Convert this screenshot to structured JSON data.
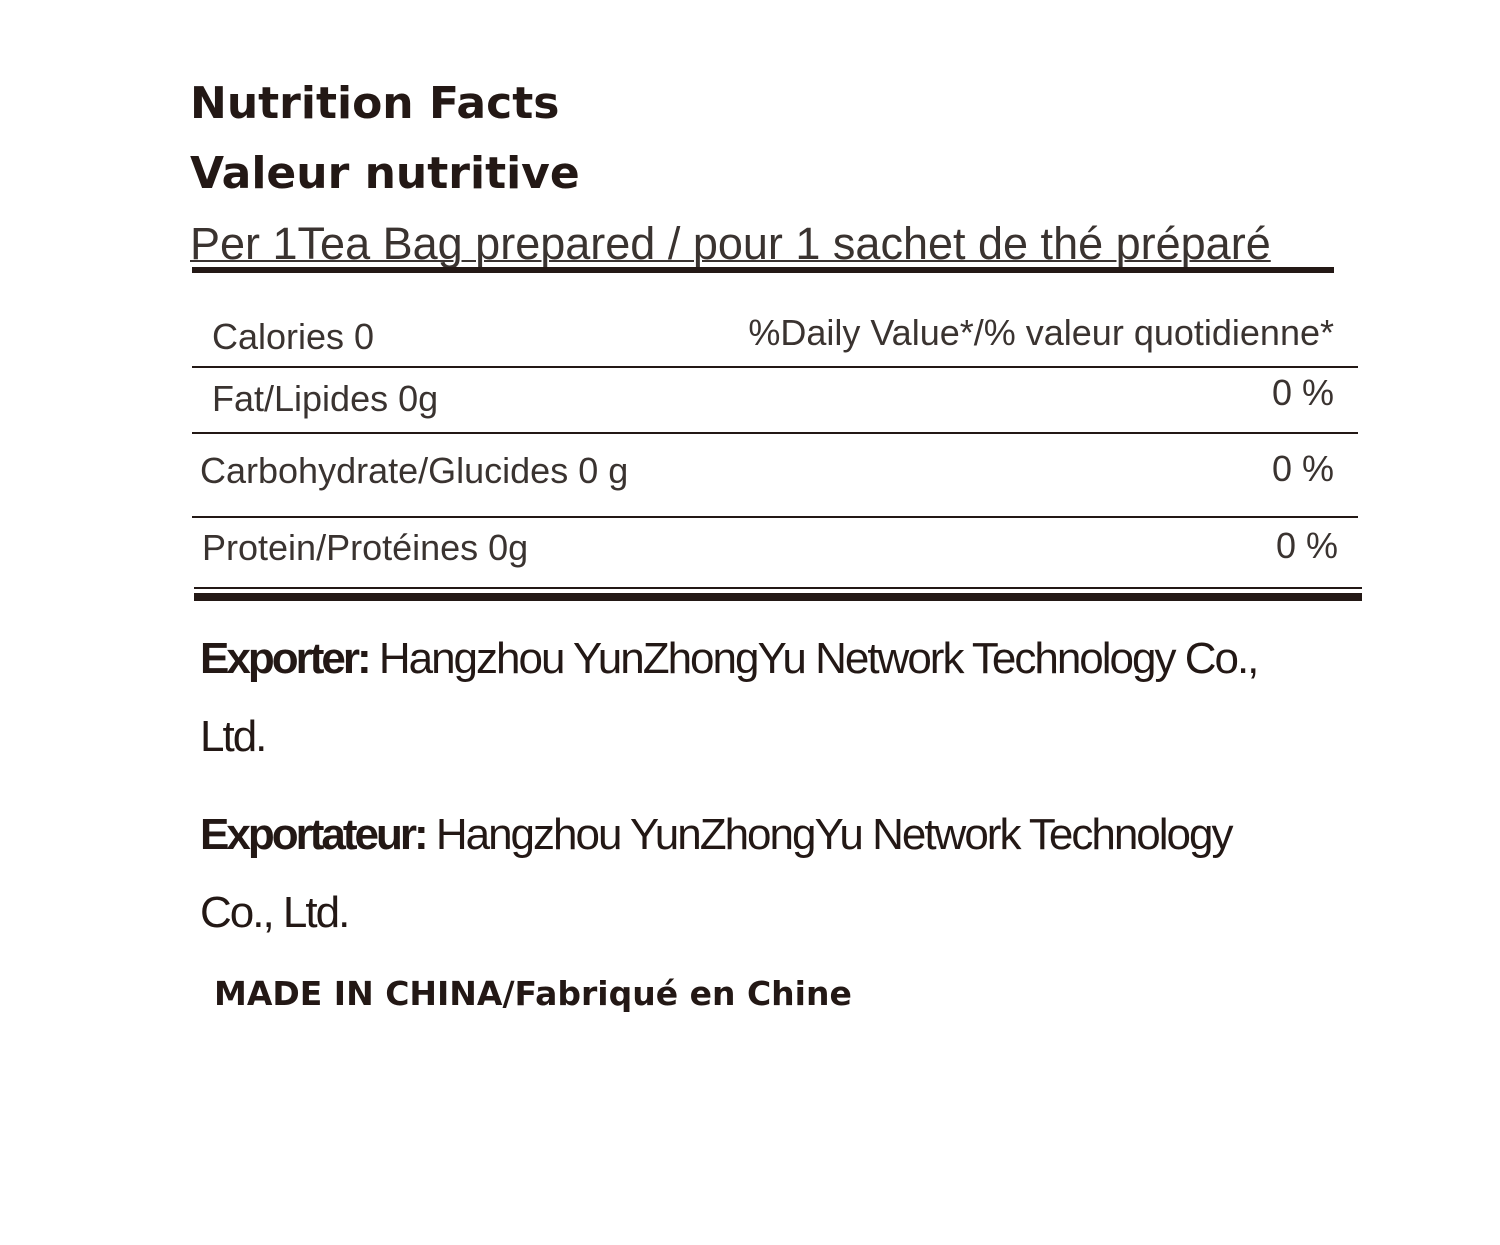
{
  "title_en": "Nutrition Facts",
  "title_fr": "Valeur nutritive",
  "serving": "Per 1Tea Bag prepared / pour 1 sachet de thé préparé",
  "calories": "Calories 0",
  "dv_header": "%Daily Value*/% valeur quotidienne*",
  "rows": [
    {
      "label": "Fat/Lipides 0g",
      "dv": "0 %"
    },
    {
      "label": "Carbohydrate/Glucides 0 g",
      "dv": "0 %"
    },
    {
      "label": "Protein/Protéines 0g",
      "dv": "0 %"
    }
  ],
  "exporter": {
    "label": "Exporter:",
    "line1": " Hangzhou YunZhongYu Network Technology Co.,",
    "line2": "Ltd."
  },
  "exportateur": {
    "label": "Exportateur:",
    "line1": " Hangzhou YunZhongYu Network Technology",
    "line2": "Co., Ltd."
  },
  "origin": "MADE IN CHINA/Fabriqué en Chine"
}
